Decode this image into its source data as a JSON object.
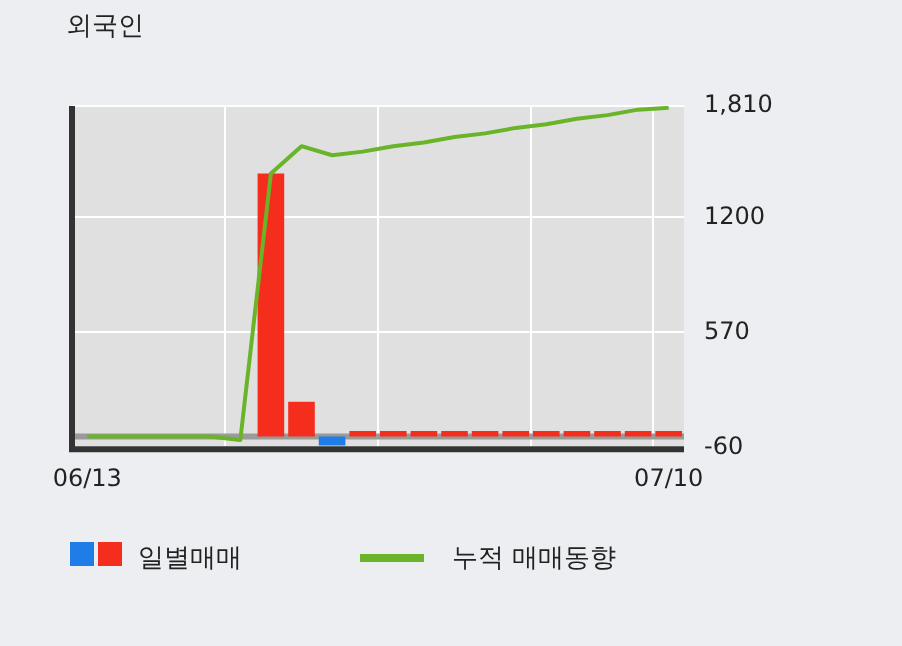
{
  "chart_data": {
    "type": "bar",
    "title": "외국인",
    "categories": [
      "06/13",
      null,
      null,
      null,
      null,
      null,
      null,
      null,
      null,
      null,
      null,
      null,
      null,
      null,
      null,
      null,
      null,
      null,
      null,
      "07/10"
    ],
    "series": [
      {
        "name": "일별매매",
        "colors": [
          "#f52d1c",
          "#f52d1c",
          "#f52d1c",
          "#f52d1c",
          "#f52d1c",
          "#f52d1c",
          "#f52d1c",
          "#f52d1c",
          "#1f7de8",
          "#f52d1c",
          "#f52d1c",
          "#f52d1c",
          "#f52d1c",
          "#f52d1c",
          "#f52d1c",
          "#f52d1c",
          "#f52d1c",
          "#f52d1c",
          "#f52d1c",
          "#f52d1c"
        ],
        "values": [
          null,
          null,
          null,
          null,
          null,
          null,
          1440,
          190,
          -50,
          30,
          30,
          30,
          30,
          30,
          30,
          30,
          30,
          30,
          30,
          30
        ]
      },
      {
        "name": "누적 매매동향",
        "type": "line",
        "color": "#6ab42a",
        "values": [
          0,
          0,
          0,
          0,
          0,
          -20,
          1440,
          1590,
          1540,
          1560,
          1590,
          1610,
          1640,
          1660,
          1690,
          1710,
          1740,
          1760,
          1790,
          1800
        ]
      }
    ],
    "ylim": [
      -70,
      1810
    ],
    "yticks": [
      {
        "value": -60,
        "label": "-60"
      },
      {
        "value": 570,
        "label": "570"
      },
      {
        "value": 1200,
        "label": "1200"
      },
      {
        "value": 1810,
        "label": "1,810"
      }
    ],
    "ref_lines": [
      {
        "axis": "y",
        "value": 0,
        "color": "#9a9a9a"
      }
    ],
    "grid": true,
    "legend": "bottom"
  }
}
